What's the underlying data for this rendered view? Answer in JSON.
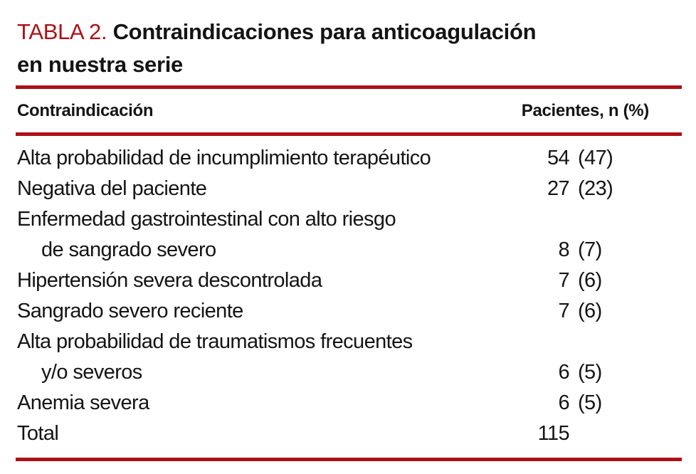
{
  "accent_red": "#ad1016",
  "header": {
    "label": "TABLA 2.",
    "title_line1": "Contraindicaciones para anticoagulación",
    "title_line2": "en nuestra serie"
  },
  "table": {
    "columns": [
      "Contraindicación",
      "Pacientes, n (%)"
    ],
    "rows": [
      {
        "lines": [
          "Alta probabilidad de incumplimiento terapéutico"
        ],
        "n": "54",
        "pct": "(47)"
      },
      {
        "lines": [
          "Negativa del paciente"
        ],
        "n": "27",
        "pct": "(23)"
      },
      {
        "lines": [
          "Enfermedad gastrointestinal con alto riesgo",
          "de sangrado severo"
        ],
        "n": "8",
        "pct": "(7)"
      },
      {
        "lines": [
          "Hipertensión severa descontrolada"
        ],
        "n": "7",
        "pct": "(6)"
      },
      {
        "lines": [
          "Sangrado severo reciente"
        ],
        "n": "7",
        "pct": "(6)"
      },
      {
        "lines": [
          "Alta probabilidad de traumatismos frecuentes",
          "y/o severos"
        ],
        "n": "6",
        "pct": "(5)"
      },
      {
        "lines": [
          "Anemia severa"
        ],
        "n": "6",
        "pct": "(5)"
      },
      {
        "lines": [
          "Total"
        ],
        "n": "115",
        "pct": ""
      }
    ]
  }
}
